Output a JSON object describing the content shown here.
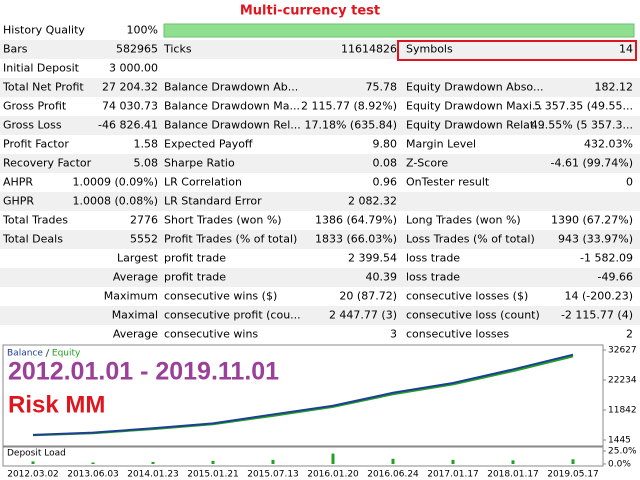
{
  "header": {
    "title": "Multi-currency test"
  },
  "table": {
    "rows": [
      [
        "History Quality",
        "100%"
      ],
      [
        "Bars",
        "582965",
        "Ticks",
        "11614826",
        "Symbols",
        "14"
      ],
      [
        "Initial Deposit",
        "3 000.00"
      ],
      [
        "Total Net Profit",
        "27 204.32",
        "Balance Drawdown Ab...",
        "75.78",
        "Equity Drawdown Abso...",
        "182.12"
      ],
      [
        "Gross Profit",
        "74 030.73",
        "Balance Drawdown Ma...",
        "2 115.77 (8.92%)",
        "Equity Drawdown Maxi...",
        "5 357.35 (49.55..."
      ],
      [
        "Gross Loss",
        "-46 826.41",
        "Balance Drawdown Rel...",
        "17.18% (635.84)",
        "Equity Drawdown Relat...",
        "49.55% (5 357.3..."
      ],
      [
        "Profit Factor",
        "1.58",
        "Expected Payoff",
        "9.80",
        "Margin Level",
        "432.03%"
      ],
      [
        "Recovery Factor",
        "5.08",
        "Sharpe Ratio",
        "0.08",
        "Z-Score",
        "-4.61 (99.74%)"
      ],
      [
        "AHPR",
        "1.0009 (0.09%)",
        "LR Correlation",
        "0.96",
        "OnTester result",
        "0"
      ],
      [
        "GHPR",
        "1.0008 (0.08%)",
        "LR Standard Error",
        "2 082.32"
      ],
      [
        "Total Trades",
        "2776",
        "Short Trades (won %)",
        "1386 (64.79%)",
        "Long Trades (won %)",
        "1390 (67.27%)"
      ],
      [
        "Total Deals",
        "5552",
        "Profit Trades (% of total)",
        "1833 (66.03%)",
        "Loss Trades (% of total)",
        "943 (33.97%)"
      ],
      [
        "Largest",
        "profit trade",
        "2 399.54",
        "loss trade",
        "-1 582.09"
      ],
      [
        "Average",
        "profit trade",
        "40.39",
        "loss trade",
        "-49.66"
      ],
      [
        "Maximum",
        "consecutive wins ($)",
        "20 (87.72)",
        "consecutive losses ($)",
        "14 (-200.23)"
      ],
      [
        "Maximal",
        "consecutive profit (cou...",
        "2 447.77 (3)",
        "consecutive loss (count)",
        "-2 115.77 (4)"
      ],
      [
        "Average",
        "consecutive wins",
        "3",
        "consecutive losses",
        "2"
      ]
    ]
  },
  "chart_data": [
    {
      "type": "line",
      "annotations": [
        "2012.01.01 - 2019.11.01",
        "Risk MM"
      ],
      "categories": [
        "2012.03.02",
        "2013.06.03",
        "2014.01.23",
        "2015.01.21",
        "2015.07.13",
        "2016.01.20",
        "2016.06.24",
        "2017.01.17",
        "2018.01.17",
        "2019.05.17"
      ],
      "series": [
        {
          "name": "Balance",
          "color": "#1c3f94",
          "values": [
            3200,
            4000,
            5500,
            7200,
            10300,
            13300,
            17800,
            21200,
            25900,
            31000
          ]
        },
        {
          "name": "Equity",
          "color": "#22a022",
          "values": [
            3100,
            3800,
            5200,
            6900,
            9800,
            12900,
            17300,
            20700,
            25300,
            30400
          ]
        }
      ],
      "ylim": [
        1445,
        32627
      ],
      "yticks": [
        1445,
        11842,
        22234,
        32627
      ]
    },
    {
      "type": "bar",
      "title": "Deposit Load",
      "color": "#22a022",
      "categories": [
        "2012.03.02",
        "2013.06.03",
        "2014.01.23",
        "2015.01.21",
        "2015.07.13",
        "2016.01.20",
        "2016.06.24",
        "2017.01.17",
        "2018.01.17",
        "2019.05.17"
      ],
      "values": [
        5,
        3,
        4,
        6,
        8,
        20,
        10,
        8,
        7,
        9
      ],
      "ylim": [
        0,
        25
      ],
      "yticks": [
        {
          "value": 25,
          "label": "25.0%"
        },
        {
          "value": 0,
          "label": "0.0%"
        }
      ]
    }
  ]
}
